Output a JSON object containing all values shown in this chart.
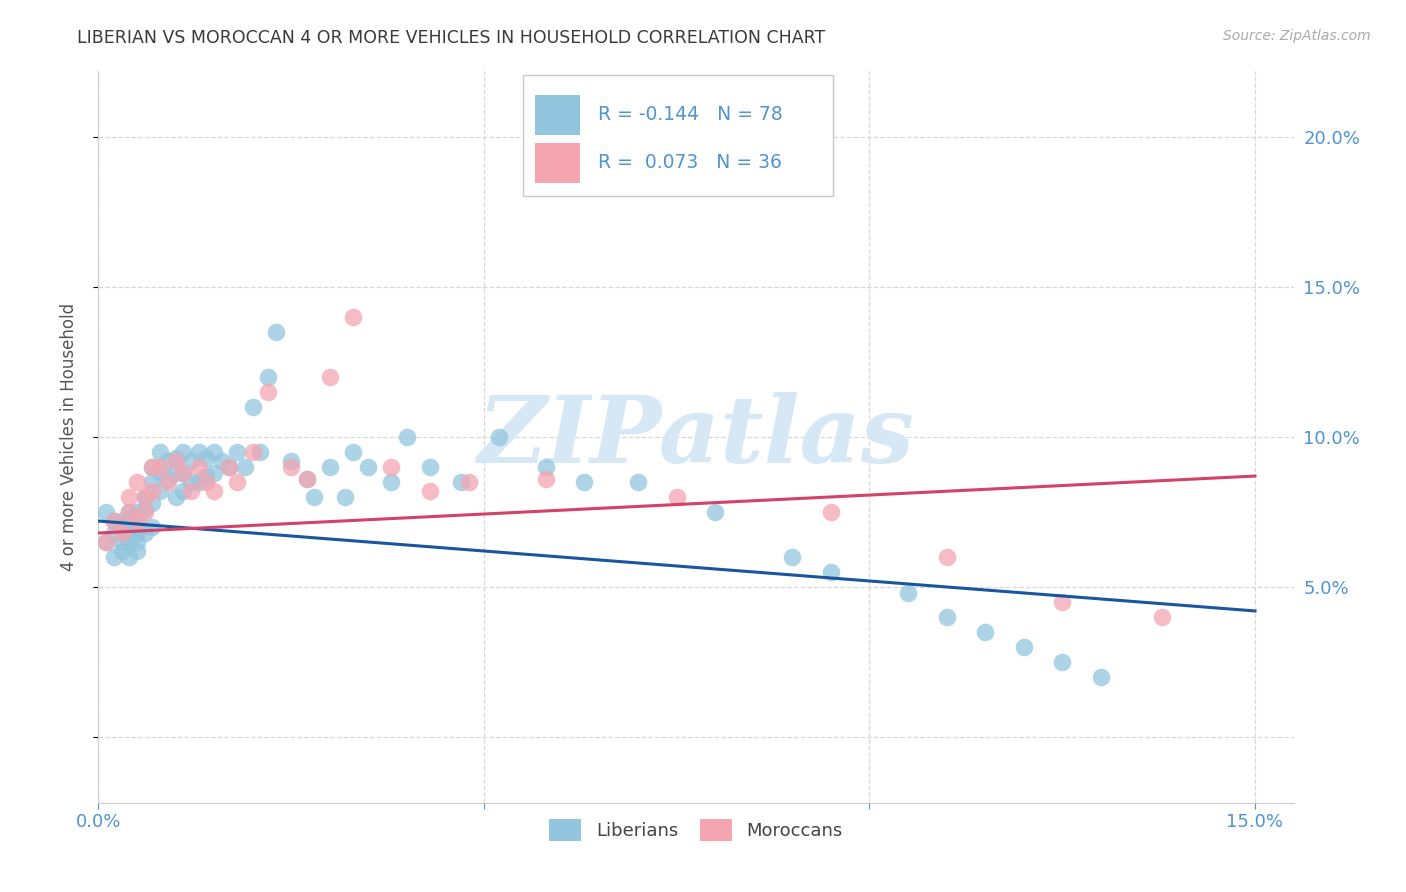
{
  "title": "LIBERIAN VS MOROCCAN 4 OR MORE VEHICLES IN HOUSEHOLD CORRELATION CHART",
  "source": "Source: ZipAtlas.com",
  "ylabel": "4 or more Vehicles in Household",
  "xlim": [
    0.0,
    0.155
  ],
  "ylim": [
    -0.022,
    0.222
  ],
  "liberian_R": -0.144,
  "liberian_N": 78,
  "moroccan_R": 0.073,
  "moroccan_N": 36,
  "liberian_color": "#92c5de",
  "moroccan_color": "#f4a5b0",
  "liberian_line_color": "#1a56a0",
  "moroccan_line_color": "#d4426a",
  "axis_color": "#4f94d4",
  "grid_color": "#d8d8d8",
  "title_color": "#3a3a3a",
  "watermark_color": "#d6e8f5",
  "lib_line_x0": 0.0,
  "lib_line_y0": 0.072,
  "lib_line_x1": 0.15,
  "lib_line_y1": 0.042,
  "mor_line_x0": 0.0,
  "mor_line_y0": 0.068,
  "mor_line_x1": 0.15,
  "mor_line_y1": 0.087,
  "lib_x": [
    0.001,
    0.001,
    0.002,
    0.002,
    0.002,
    0.003,
    0.003,
    0.003,
    0.003,
    0.004,
    0.004,
    0.004,
    0.004,
    0.004,
    0.005,
    0.005,
    0.005,
    0.005,
    0.005,
    0.005,
    0.006,
    0.006,
    0.006,
    0.007,
    0.007,
    0.007,
    0.007,
    0.008,
    0.008,
    0.008,
    0.009,
    0.009,
    0.01,
    0.01,
    0.01,
    0.011,
    0.011,
    0.011,
    0.012,
    0.012,
    0.013,
    0.013,
    0.014,
    0.014,
    0.015,
    0.015,
    0.016,
    0.017,
    0.018,
    0.019,
    0.02,
    0.021,
    0.022,
    0.023,
    0.025,
    0.027,
    0.028,
    0.03,
    0.032,
    0.033,
    0.035,
    0.038,
    0.04,
    0.043,
    0.047,
    0.052,
    0.058,
    0.063,
    0.07,
    0.08,
    0.09,
    0.095,
    0.105,
    0.11,
    0.115,
    0.12,
    0.125,
    0.13
  ],
  "lib_y": [
    0.075,
    0.065,
    0.068,
    0.072,
    0.06,
    0.07,
    0.065,
    0.062,
    0.072,
    0.068,
    0.065,
    0.072,
    0.075,
    0.06,
    0.07,
    0.068,
    0.065,
    0.072,
    0.075,
    0.062,
    0.08,
    0.076,
    0.068,
    0.09,
    0.085,
    0.078,
    0.07,
    0.095,
    0.088,
    0.082,
    0.092,
    0.086,
    0.093,
    0.088,
    0.08,
    0.095,
    0.088,
    0.082,
    0.092,
    0.085,
    0.095,
    0.085,
    0.093,
    0.087,
    0.095,
    0.088,
    0.092,
    0.09,
    0.095,
    0.09,
    0.11,
    0.095,
    0.12,
    0.135,
    0.092,
    0.086,
    0.08,
    0.09,
    0.08,
    0.095,
    0.09,
    0.085,
    0.1,
    0.09,
    0.085,
    0.1,
    0.09,
    0.085,
    0.085,
    0.075,
    0.06,
    0.055,
    0.048,
    0.04,
    0.035,
    0.03,
    0.025,
    0.02
  ],
  "mor_x": [
    0.001,
    0.002,
    0.003,
    0.004,
    0.004,
    0.005,
    0.005,
    0.006,
    0.006,
    0.007,
    0.007,
    0.008,
    0.009,
    0.01,
    0.011,
    0.012,
    0.013,
    0.014,
    0.015,
    0.017,
    0.018,
    0.02,
    0.022,
    0.025,
    0.027,
    0.03,
    0.033,
    0.038,
    0.043,
    0.048,
    0.058,
    0.075,
    0.095,
    0.11,
    0.125,
    0.138
  ],
  "mor_y": [
    0.065,
    0.072,
    0.068,
    0.08,
    0.075,
    0.072,
    0.085,
    0.08,
    0.075,
    0.09,
    0.082,
    0.09,
    0.085,
    0.092,
    0.088,
    0.082,
    0.09,
    0.085,
    0.082,
    0.09,
    0.085,
    0.095,
    0.115,
    0.09,
    0.086,
    0.12,
    0.14,
    0.09,
    0.082,
    0.085,
    0.086,
    0.08,
    0.075,
    0.06,
    0.045,
    0.04
  ]
}
